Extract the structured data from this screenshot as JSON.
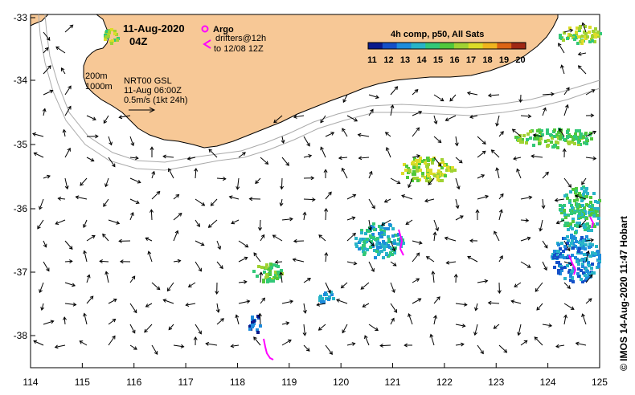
{
  "map": {
    "date": "11-Aug-2020",
    "time": "04Z",
    "legend": {
      "argo_label": "Argo",
      "drifters_label": "drifters@12h",
      "drifters_range": "to 12/08 12Z",
      "argo_color": "#ff00ff",
      "drifter_color": "#ff00ff"
    },
    "colorbar": {
      "title": "4h comp, p50, All Sats",
      "ticks": [
        "11",
        "12",
        "13",
        "14",
        "15",
        "16",
        "17",
        "18",
        "19",
        "20"
      ],
      "colors": [
        "#0a1a8c",
        "#1450c8",
        "#1e8cdc",
        "#28b4c8",
        "#32c878",
        "#50c83c",
        "#a0d232",
        "#dcdc28",
        "#f0b41e",
        "#dc6414",
        "#a02814"
      ]
    },
    "annotations": {
      "isobath_200": "200m",
      "isobath_1000": "1000m",
      "source": "NRT00 GSL",
      "analysis_time": "11-Aug 06:00Z",
      "scale": "0.5m/s (1kt 24h)"
    },
    "credit": "© IMOS 14-Aug-2020 11:47 Hobart",
    "x_ticks": [
      "114",
      "115",
      "116",
      "117",
      "118",
      "119",
      "120",
      "121",
      "122",
      "123",
      "124",
      "125"
    ],
    "y_ticks": [
      "-33",
      "-34",
      "-35",
      "-36",
      "-37",
      "-38"
    ],
    "colors": {
      "land": "#f7c896",
      "coast": "#000000",
      "isobath": "#aaaaaa",
      "arrow": "#000000"
    }
  }
}
